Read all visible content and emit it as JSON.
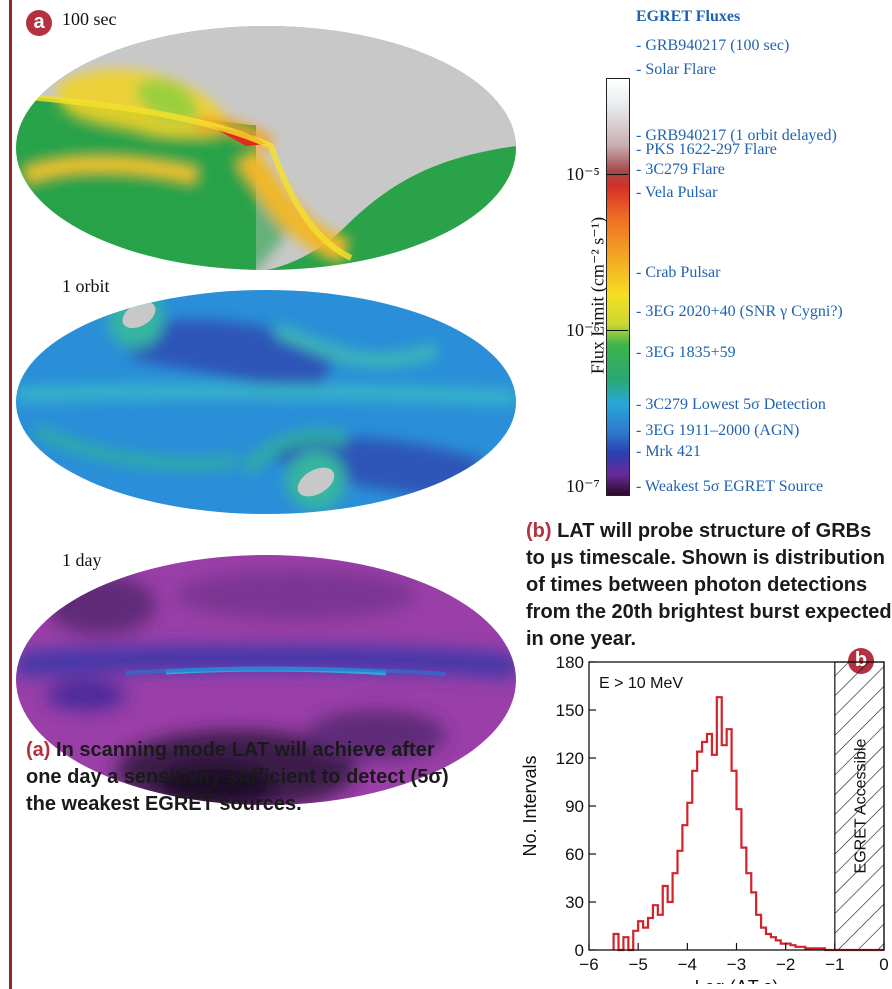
{
  "panel_a": {
    "badge": "a",
    "maps": [
      {
        "label": "100 sec"
      },
      {
        "label": "1 orbit"
      },
      {
        "label": "1 day"
      }
    ],
    "caption_lead": "(a)",
    "caption_text": "In scanning mode LAT will achieve after one day a sensitivity sufficient to detect (5σ) the weakest EGRET sources."
  },
  "panel_colorbar": {
    "title": "EGRET Fluxes",
    "axis_label": "Flux Limit (cm⁻² s⁻¹)",
    "tick_labels": [
      "10⁻⁵",
      "10⁻⁶",
      "10⁻⁷"
    ],
    "items": [
      "- GRB940217 (100 sec)",
      "- Solar Flare",
      "- GRB940217 (1 orbit delayed)",
      "- PKS 1622-297 Flare",
      "- 3C279 Flare",
      "- Vela Pulsar",
      "- Crab Pulsar",
      "- 3EG 2020+40 (SNR γ Cygni?)",
      "- 3EG 1835+59",
      "- 3C279 Lowest 5σ Detection",
      "- 3EG 1911–2000 (AGN)",
      "- Mrk 421",
      "- Weakest 5σ EGRET Source"
    ]
  },
  "panel_b": {
    "badge": "b",
    "caption_lead": "(b)",
    "caption_text": "LAT will probe structure of GRBs to μs timescale. Shown is distribution of times between photon detections from the 20th brightest burst expected in one year."
  },
  "chart_data": {
    "type": "bar",
    "title": "",
    "xlabel": "Log  (ΔT s)",
    "ylabel": "No. Intervals",
    "annotation": "E > 10 MeV",
    "shaded_region_label": "EGRET Accessible",
    "shaded_region_x": [
      -1,
      0
    ],
    "xlim": [
      -6,
      0
    ],
    "ylim": [
      0,
      180
    ],
    "xticks": [
      -6,
      -5,
      -4,
      -3,
      -2,
      -1,
      0
    ],
    "xtick_labels": [
      "−6",
      "−5",
      "−4",
      "−3",
      "−2",
      "−1",
      "0"
    ],
    "yticks": [
      0,
      30,
      60,
      90,
      120,
      150,
      180
    ],
    "bin_width": 0.1,
    "bin_starts": [
      -5.5,
      -5.4,
      -5.3,
      -5.2,
      -5.1,
      -5.0,
      -4.9,
      -4.8,
      -4.7,
      -4.6,
      -4.5,
      -4.4,
      -4.3,
      -4.2,
      -4.1,
      -4.0,
      -3.9,
      -3.8,
      -3.7,
      -3.6,
      -3.5,
      -3.4,
      -3.3,
      -3.2,
      -3.1,
      -3.0,
      -2.9,
      -2.8,
      -2.7,
      -2.6,
      -2.5,
      -2.4,
      -2.3,
      -2.2,
      -2.1,
      -2.0,
      -1.9,
      -1.8,
      -1.7,
      -1.6,
      -1.5,
      -1.4,
      -1.3,
      -1.2,
      -1.1
    ],
    "values": [
      10,
      0,
      8,
      0,
      12,
      18,
      14,
      20,
      28,
      22,
      40,
      30,
      48,
      62,
      78,
      92,
      112,
      124,
      130,
      135,
      122,
      158,
      128,
      138,
      112,
      88,
      64,
      48,
      36,
      22,
      14,
      10,
      8,
      6,
      4,
      4,
      3,
      2,
      2,
      1,
      1,
      1,
      1,
      0,
      0
    ],
    "line_color": "#d2232a",
    "grid": false
  }
}
